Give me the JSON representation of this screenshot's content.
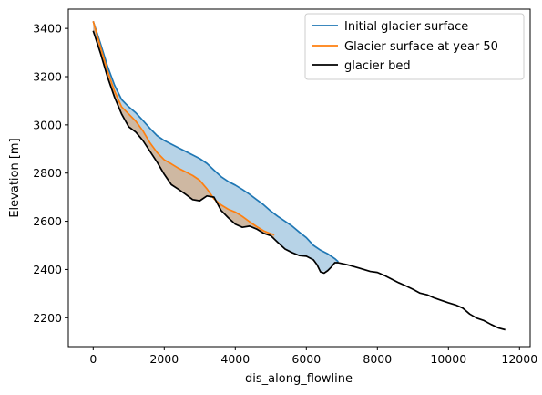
{
  "chart_data": {
    "type": "line",
    "title": "",
    "xlabel": "dis_along_flowline",
    "ylabel": "Elevation [m]",
    "xlim": [
      -700,
      12300
    ],
    "ylim": [
      2080,
      3480
    ],
    "xticks": [
      0,
      2000,
      4000,
      6000,
      8000,
      10000,
      12000
    ],
    "yticks": [
      2200,
      2400,
      2600,
      2800,
      3000,
      3200,
      3400
    ],
    "grid": false,
    "legend_position": "top-right",
    "colors": {
      "initial": "#1f77b4",
      "year50": "#ff7f0e",
      "bed": "#000000",
      "fill_initial": "#1f77b4",
      "fill_year50": "#ff7f0e"
    },
    "series": [
      {
        "name": "Initial glacier surface",
        "x": [
          0,
          200,
          400,
          600,
          800,
          1000,
          1200,
          1400,
          1600,
          1800,
          2000,
          2200,
          2400,
          2600,
          2800,
          3000,
          3200,
          3400,
          3600,
          3800,
          4000,
          4200,
          4400,
          4600,
          4800,
          5000,
          5200,
          5400,
          5600,
          5800,
          6000,
          6200,
          6400,
          6600,
          6800,
          6900
        ],
        "y": [
          3430,
          3340,
          3245,
          3165,
          3105,
          3075,
          3050,
          3018,
          2985,
          2955,
          2935,
          2920,
          2905,
          2890,
          2875,
          2860,
          2840,
          2812,
          2785,
          2765,
          2750,
          2732,
          2712,
          2690,
          2668,
          2642,
          2620,
          2600,
          2580,
          2555,
          2532,
          2500,
          2480,
          2465,
          2445,
          2432
        ]
      },
      {
        "name": "Glacier surface at year 50",
        "x": [
          0,
          200,
          400,
          600,
          800,
          1000,
          1200,
          1400,
          1600,
          1800,
          2000,
          2200,
          2400,
          2600,
          2800,
          3000,
          3200,
          3400,
          3600,
          3800,
          4000,
          4200,
          4400,
          4600,
          4800,
          5000,
          5100
        ],
        "y": [
          3430,
          3325,
          3225,
          3140,
          3075,
          3045,
          3015,
          2975,
          2925,
          2885,
          2855,
          2838,
          2820,
          2805,
          2790,
          2770,
          2735,
          2693,
          2668,
          2650,
          2638,
          2620,
          2598,
          2578,
          2560,
          2548,
          2545
        ]
      },
      {
        "name": "glacier bed",
        "x": [
          0,
          200,
          400,
          600,
          800,
          1000,
          1200,
          1400,
          1600,
          1800,
          2000,
          2200,
          2400,
          2600,
          2800,
          3000,
          3200,
          3400,
          3600,
          3800,
          4000,
          4200,
          4400,
          4600,
          4800,
          5000,
          5200,
          5400,
          5600,
          5800,
          6000,
          6200,
          6300,
          6400,
          6500,
          6600,
          6700,
          6800,
          6900,
          7200,
          7500,
          7800,
          8000,
          8200,
          8400,
          8600,
          8800,
          9000,
          9200,
          9400,
          9600,
          9800,
          10000,
          10200,
          10400,
          10600,
          10800,
          11000,
          11200,
          11400,
          11600
        ],
        "y": [
          3390,
          3300,
          3200,
          3115,
          3045,
          2992,
          2970,
          2935,
          2890,
          2845,
          2795,
          2752,
          2733,
          2712,
          2690,
          2685,
          2705,
          2700,
          2645,
          2615,
          2588,
          2575,
          2580,
          2568,
          2550,
          2540,
          2512,
          2485,
          2470,
          2458,
          2455,
          2440,
          2420,
          2390,
          2385,
          2395,
          2410,
          2428,
          2428,
          2418,
          2405,
          2392,
          2388,
          2375,
          2360,
          2345,
          2332,
          2318,
          2302,
          2295,
          2282,
          2272,
          2262,
          2253,
          2240,
          2215,
          2198,
          2188,
          2172,
          2158,
          2150
        ]
      }
    ]
  }
}
